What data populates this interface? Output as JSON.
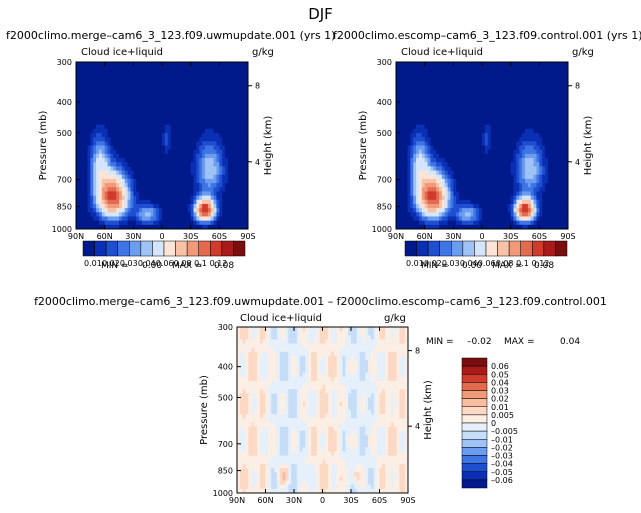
{
  "season_title": "DJF",
  "colors": {
    "abs_levels": [
      "#001a8c",
      "#0b2fb4",
      "#1f4fd1",
      "#3e74e3",
      "#6b9cef",
      "#9fc2f7",
      "#d4e6fb",
      "#fde4d6",
      "#f8c2a8",
      "#f09a7a",
      "#e46a4f",
      "#cf3b2c",
      "#a91a1a",
      "#7a0d0d"
    ],
    "diff_levels": [
      "#001a8c",
      "#0b2fb4",
      "#1f4fd1",
      "#3e74e3",
      "#6b9cef",
      "#9fc2f7",
      "#c6ddf8",
      "#e6f0fb",
      "#fbeee4",
      "#fcd9c4",
      "#f8bca0",
      "#f09a7a",
      "#e46a4f",
      "#cf3b2c",
      "#a91a1a",
      "#7a0d0d"
    ]
  },
  "chart_data": [
    {
      "type": "heatmap",
      "id": "left",
      "title": "f2000climo.merge–cam6_3_123.f09.uwmupdate.001 (yrs 1)",
      "variable": "Cloud ice+liquid",
      "units": "g/kg",
      "xlabel": "",
      "ylabel": "Pressure (mb)",
      "y2label": "Height (km)",
      "x_ticks": [
        "90N",
        "60N",
        "30N",
        "0",
        "30S",
        "60S",
        "90S"
      ],
      "y_ticks": [
        "300",
        "400",
        "500",
        "700",
        "850",
        "1000"
      ],
      "y_tick_values": [
        300,
        400,
        500,
        700,
        850,
        1000
      ],
      "y2_ticks": [
        "8",
        "4"
      ],
      "ylim": [
        300,
        1000
      ],
      "min_label": "MIN =",
      "min_value": "0.00",
      "max_label": "MAX =",
      "max_value": "0.08",
      "colorbar_labels": [
        "0.01",
        "0.02",
        "0.03",
        "0.04",
        "0.06",
        "0.08",
        "0.1",
        "0.12"
      ],
      "features": [
        {
          "lat": 52,
          "p": 780,
          "peak": 0.08
        },
        {
          "lat": -45,
          "p": 870,
          "peak": 0.08
        },
        {
          "lat": 10,
          "p": 900,
          "peak": 0.03
        }
      ]
    },
    {
      "type": "heatmap",
      "id": "right",
      "title": "f2000climo.escomp–cam6_3_123.f09.control.001 (yrs 1)",
      "variable": "Cloud ice+liquid",
      "units": "g/kg",
      "xlabel": "",
      "ylabel": "Pressure (mb)",
      "y2label": "Height (km)",
      "x_ticks": [
        "90N",
        "60N",
        "30N",
        "0",
        "30S",
        "60S",
        "90S"
      ],
      "y_ticks": [
        "300",
        "400",
        "500",
        "700",
        "850",
        "1000"
      ],
      "y_tick_values": [
        300,
        400,
        500,
        700,
        850,
        1000
      ],
      "y2_ticks": [
        "8",
        "4"
      ],
      "ylim": [
        300,
        1000
      ],
      "min_label": "MIN =",
      "min_value": "0.00",
      "max_label": "MAX =",
      "max_value": "0.08",
      "colorbar_labels": [
        "0.01",
        "0.02",
        "0.03",
        "0.04",
        "0.06",
        "0.08",
        "0.1",
        "0.12"
      ],
      "features": [
        {
          "lat": 52,
          "p": 780,
          "peak": 0.08
        },
        {
          "lat": -45,
          "p": 870,
          "peak": 0.08
        },
        {
          "lat": 10,
          "p": 900,
          "peak": 0.03
        }
      ]
    },
    {
      "type": "heatmap",
      "id": "diff",
      "title": "f2000climo.merge–cam6_3_123.f09.uwmupdate.001  –  f2000climo.escomp–cam6_3_123.f09.control.001",
      "variable": "Cloud  ice+liquid",
      "units": "g/kg",
      "xlabel": "",
      "ylabel": "Pressure (mb)",
      "y2label": "Height (km)",
      "x_ticks": [
        "90N",
        "60N",
        "30N",
        "0",
        "30S",
        "60S",
        "90S"
      ],
      "y_ticks": [
        "300",
        "400",
        "500",
        "700",
        "850",
        "1000"
      ],
      "y_tick_values": [
        300,
        400,
        500,
        700,
        850,
        1000
      ],
      "y2_ticks": [
        "8",
        "4"
      ],
      "ylim": [
        300,
        1000
      ],
      "min_label": "MIN =",
      "min_value": "–0.02",
      "max_label": "MAX =",
      "max_value": "0.04",
      "colorbar_labels": [
        "0.06",
        "0.05",
        "0.04",
        "0.03",
        "0.02",
        "0.01",
        "0.005",
        "0",
        "–0.005",
        "–0.01",
        "–0.02",
        "–0.03",
        "–0.04",
        "–0.05",
        "–0.06"
      ],
      "range": [
        -0.02,
        0.04
      ]
    }
  ]
}
